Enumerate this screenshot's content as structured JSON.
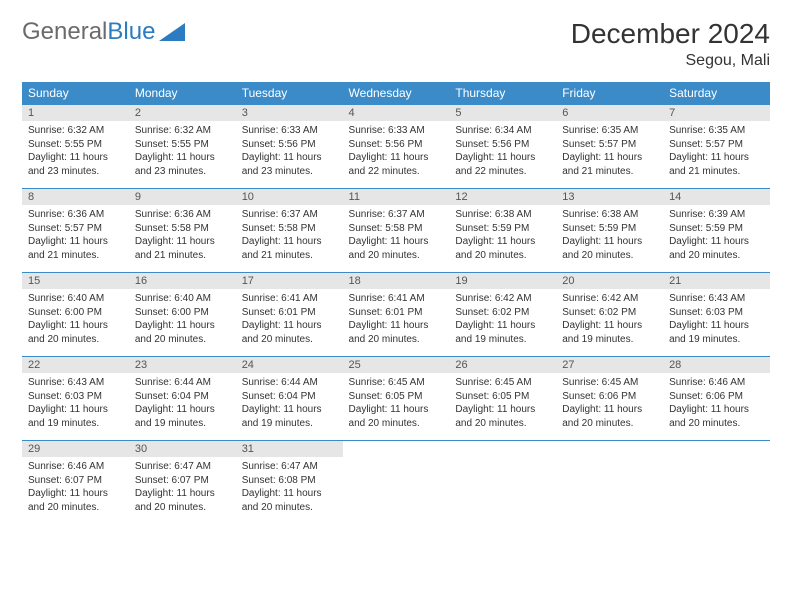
{
  "logo": {
    "text1": "General",
    "text2": "Blue"
  },
  "title": "December 2024",
  "location": "Segou, Mali",
  "colors": {
    "header_bg": "#3b8bc9",
    "header_fg": "#ffffff",
    "daynum_bg": "#e6e6e6",
    "border": "#3b8bc9",
    "logo_gray": "#6b6b6b",
    "logo_blue": "#2b7cc0"
  },
  "weekdays": [
    "Sunday",
    "Monday",
    "Tuesday",
    "Wednesday",
    "Thursday",
    "Friday",
    "Saturday"
  ],
  "weeks": [
    [
      {
        "n": "1",
        "sr": "6:32 AM",
        "ss": "5:55 PM",
        "d": "11 hours and 23 minutes."
      },
      {
        "n": "2",
        "sr": "6:32 AM",
        "ss": "5:55 PM",
        "d": "11 hours and 23 minutes."
      },
      {
        "n": "3",
        "sr": "6:33 AM",
        "ss": "5:56 PM",
        "d": "11 hours and 23 minutes."
      },
      {
        "n": "4",
        "sr": "6:33 AM",
        "ss": "5:56 PM",
        "d": "11 hours and 22 minutes."
      },
      {
        "n": "5",
        "sr": "6:34 AM",
        "ss": "5:56 PM",
        "d": "11 hours and 22 minutes."
      },
      {
        "n": "6",
        "sr": "6:35 AM",
        "ss": "5:57 PM",
        "d": "11 hours and 21 minutes."
      },
      {
        "n": "7",
        "sr": "6:35 AM",
        "ss": "5:57 PM",
        "d": "11 hours and 21 minutes."
      }
    ],
    [
      {
        "n": "8",
        "sr": "6:36 AM",
        "ss": "5:57 PM",
        "d": "11 hours and 21 minutes."
      },
      {
        "n": "9",
        "sr": "6:36 AM",
        "ss": "5:58 PM",
        "d": "11 hours and 21 minutes."
      },
      {
        "n": "10",
        "sr": "6:37 AM",
        "ss": "5:58 PM",
        "d": "11 hours and 21 minutes."
      },
      {
        "n": "11",
        "sr": "6:37 AM",
        "ss": "5:58 PM",
        "d": "11 hours and 20 minutes."
      },
      {
        "n": "12",
        "sr": "6:38 AM",
        "ss": "5:59 PM",
        "d": "11 hours and 20 minutes."
      },
      {
        "n": "13",
        "sr": "6:38 AM",
        "ss": "5:59 PM",
        "d": "11 hours and 20 minutes."
      },
      {
        "n": "14",
        "sr": "6:39 AM",
        "ss": "5:59 PM",
        "d": "11 hours and 20 minutes."
      }
    ],
    [
      {
        "n": "15",
        "sr": "6:40 AM",
        "ss": "6:00 PM",
        "d": "11 hours and 20 minutes."
      },
      {
        "n": "16",
        "sr": "6:40 AM",
        "ss": "6:00 PM",
        "d": "11 hours and 20 minutes."
      },
      {
        "n": "17",
        "sr": "6:41 AM",
        "ss": "6:01 PM",
        "d": "11 hours and 20 minutes."
      },
      {
        "n": "18",
        "sr": "6:41 AM",
        "ss": "6:01 PM",
        "d": "11 hours and 20 minutes."
      },
      {
        "n": "19",
        "sr": "6:42 AM",
        "ss": "6:02 PM",
        "d": "11 hours and 19 minutes."
      },
      {
        "n": "20",
        "sr": "6:42 AM",
        "ss": "6:02 PM",
        "d": "11 hours and 19 minutes."
      },
      {
        "n": "21",
        "sr": "6:43 AM",
        "ss": "6:03 PM",
        "d": "11 hours and 19 minutes."
      }
    ],
    [
      {
        "n": "22",
        "sr": "6:43 AM",
        "ss": "6:03 PM",
        "d": "11 hours and 19 minutes."
      },
      {
        "n": "23",
        "sr": "6:44 AM",
        "ss": "6:04 PM",
        "d": "11 hours and 19 minutes."
      },
      {
        "n": "24",
        "sr": "6:44 AM",
        "ss": "6:04 PM",
        "d": "11 hours and 19 minutes."
      },
      {
        "n": "25",
        "sr": "6:45 AM",
        "ss": "6:05 PM",
        "d": "11 hours and 20 minutes."
      },
      {
        "n": "26",
        "sr": "6:45 AM",
        "ss": "6:05 PM",
        "d": "11 hours and 20 minutes."
      },
      {
        "n": "27",
        "sr": "6:45 AM",
        "ss": "6:06 PM",
        "d": "11 hours and 20 minutes."
      },
      {
        "n": "28",
        "sr": "6:46 AM",
        "ss": "6:06 PM",
        "d": "11 hours and 20 minutes."
      }
    ],
    [
      {
        "n": "29",
        "sr": "6:46 AM",
        "ss": "6:07 PM",
        "d": "11 hours and 20 minutes."
      },
      {
        "n": "30",
        "sr": "6:47 AM",
        "ss": "6:07 PM",
        "d": "11 hours and 20 minutes."
      },
      {
        "n": "31",
        "sr": "6:47 AM",
        "ss": "6:08 PM",
        "d": "11 hours and 20 minutes."
      },
      null,
      null,
      null,
      null
    ]
  ],
  "labels": {
    "sunrise": "Sunrise:",
    "sunset": "Sunset:",
    "daylight": "Daylight:"
  }
}
